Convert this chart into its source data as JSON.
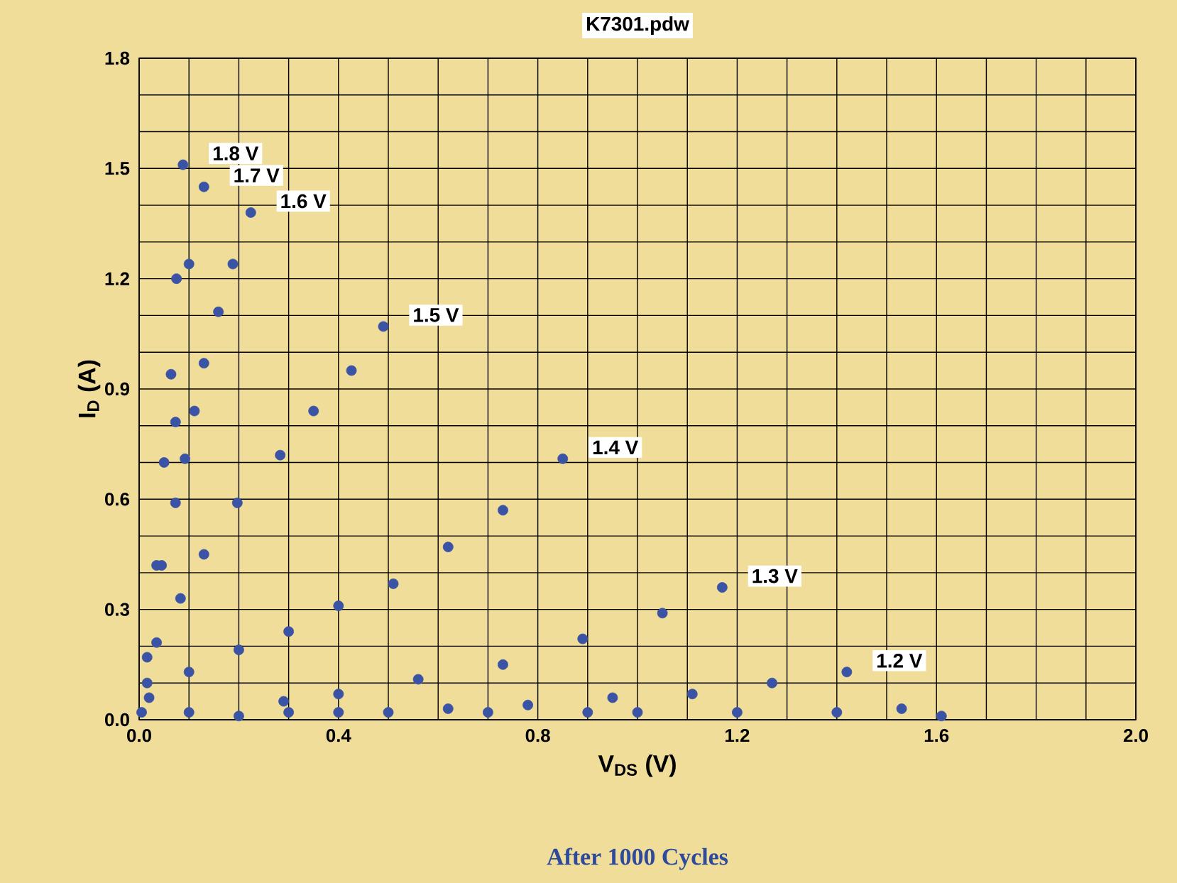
{
  "chart_data": {
    "type": "scatter",
    "title": "K7301.pdw",
    "xlabel": "V$_{DS}$ (V)",
    "ylabel": "I$_{D}$ (A)",
    "annotations": [
      "After 1000 Cycles"
    ],
    "xlim": [
      0,
      2.0
    ],
    "ylim": [
      0,
      1.8
    ],
    "xticks": [
      {
        "value": 0,
        "label": "0.0"
      },
      {
        "value": 0.4,
        "label": "0.4"
      },
      {
        "value": 0.8,
        "label": "0.8"
      },
      {
        "value": 1.2,
        "label": "1.2"
      },
      {
        "value": 1.6,
        "label": "1.6"
      },
      {
        "value": 2.0,
        "label": "2.0"
      }
    ],
    "yticks": [
      {
        "value": 0,
        "label": "0.0"
      },
      {
        "value": 0.3,
        "label": "0.3"
      },
      {
        "value": 0.6,
        "label": "0.6"
      },
      {
        "value": 0.9,
        "label": "0.9"
      },
      {
        "value": 1.2,
        "label": "1.2"
      },
      {
        "value": 1.5,
        "label": "1.5"
      },
      {
        "value": 1.8,
        "label": "1.8"
      }
    ],
    "grid": true,
    "marker": "circle",
    "series": [
      {
        "name": "1.8 V",
        "color": "#3a53a4",
        "x": [
          0.005,
          0.016,
          0.035,
          0.05,
          0.064,
          0.075,
          0.088
        ],
        "values": [
          0.02,
          0.17,
          0.42,
          0.7,
          0.94,
          1.2,
          1.51
        ]
      },
      {
        "name": "1.7 V",
        "color": "#3a53a4",
        "x": [
          0.016,
          0.045,
          0.073,
          0.1,
          0.13
        ],
        "values": [
          0.1,
          0.42,
          0.81,
          1.24,
          1.45
        ]
      },
      {
        "name": "1.6 V",
        "color": "#3a53a4",
        "x": [
          0.073,
          0.092,
          0.111,
          0.13,
          0.159,
          0.188,
          0.224
        ],
        "values": [
          0.59,
          0.71,
          0.84,
          0.97,
          1.11,
          1.24,
          1.38
        ]
      },
      {
        "name": "1.5 V",
        "color": "#3a53a4",
        "x": [
          0.035,
          0.083,
          0.13,
          0.197,
          0.283,
          0.35,
          0.426,
          0.49
        ],
        "values": [
          0.21,
          0.33,
          0.45,
          0.59,
          0.72,
          0.84,
          0.95,
          1.07
        ]
      },
      {
        "name": "1.4 V",
        "color": "#3a53a4",
        "x": [
          0.02,
          0.1,
          0.2,
          0.3,
          0.4,
          0.51,
          0.62,
          0.73,
          0.85
        ],
        "values": [
          0.06,
          0.13,
          0.19,
          0.24,
          0.31,
          0.37,
          0.47,
          0.57,
          0.71
        ]
      },
      {
        "name": "1.3 V",
        "color": "#3a53a4",
        "x": [
          0.1,
          0.29,
          0.4,
          0.56,
          0.73,
          0.89,
          1.05,
          1.17
        ],
        "values": [
          0.02,
          0.05,
          0.07,
          0.11,
          0.15,
          0.22,
          0.29,
          0.36
        ]
      },
      {
        "name": "1.2 V",
        "color": "#3a53a4",
        "x": [
          0.2,
          0.4,
          0.62,
          0.78,
          0.95,
          1.11,
          1.27,
          1.42
        ],
        "values": [
          0.01,
          0.02,
          0.03,
          0.04,
          0.06,
          0.07,
          0.1,
          0.13
        ]
      },
      {
        "color": "#3a53a4",
        "x": [
          0.3,
          0.5,
          0.7,
          0.9,
          1.0,
          1.2,
          1.4,
          1.53,
          1.61
        ],
        "values": [
          0.02,
          0.02,
          0.02,
          0.02,
          0.02,
          0.02,
          0.02,
          0.03,
          0.01
        ]
      }
    ]
  }
}
